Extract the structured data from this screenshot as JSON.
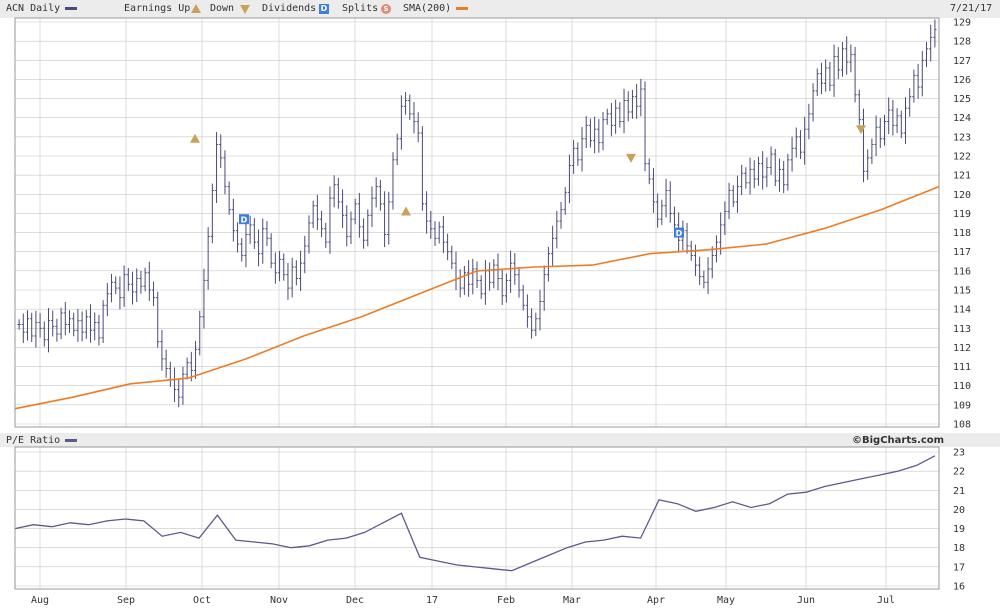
{
  "legend": {
    "symbol_label": "ACN Daily",
    "earnings_label": "Earnings",
    "up_label": "Up",
    "down_label": "Down",
    "dividends_label": "Dividends",
    "splits_label": "Splits",
    "sma_label": "SMA(200)",
    "date_label": "7/21/17",
    "dividend_marker_letter": "D",
    "split_marker_letter": "S"
  },
  "pe_panel": {
    "label": "P/E Ratio",
    "brand": "©BigCharts.com"
  },
  "colors": {
    "price_bars": "#4a4a78",
    "sma_line": "#f07c22",
    "pe_line": "#5a5a90",
    "grid": "#c8c8c8",
    "earnings_marker": "#c9a15a",
    "dividend_marker": "#3d7fd9",
    "split_marker": "#e08a7a",
    "panel_bg": "#ececec"
  },
  "chart_data": [
    {
      "type": "ohlc",
      "ylim": [
        108,
        129
      ],
      "y_ticks": [
        108,
        109,
        110,
        111,
        112,
        113,
        114,
        115,
        116,
        117,
        118,
        119,
        120,
        121,
        122,
        123,
        124,
        125,
        126,
        127,
        128,
        129
      ],
      "x_labels": [
        "Aug",
        "Sep",
        "Oct",
        "Nov",
        "Dec",
        "17",
        "Feb",
        "Mar",
        "Apr",
        "May",
        "Jun",
        "Jul"
      ],
      "series": [
        {
          "name": "ACN Daily",
          "closes": [
            113.2,
            112.8,
            113.5,
            112.6,
            113.3,
            113.0,
            112.4,
            113.4,
            113.1,
            112.7,
            113.8,
            113.2,
            113.5,
            112.9,
            113.4,
            112.8,
            113.6,
            112.9,
            113.3,
            112.5,
            114.2,
            114.8,
            115.4,
            115.1,
            114.6,
            115.8,
            115.3,
            114.9,
            115.6,
            115.2,
            115.9,
            115.0,
            114.6,
            112.3,
            111.4,
            110.9,
            110.3,
            109.8,
            109.4,
            110.6,
            111.2,
            110.8,
            111.9,
            113.6,
            115.5,
            117.8,
            120.2,
            122.6,
            121.9,
            120.4,
            119.2,
            118.1,
            117.4,
            116.8,
            117.9,
            118.4,
            117.5,
            116.9,
            118.2,
            117.7,
            116.4,
            115.9,
            116.6,
            115.8,
            115.1,
            116.2,
            115.6,
            116.4,
            117.3,
            118.5,
            119.4,
            118.7,
            118.2,
            117.5,
            119.8,
            120.5,
            119.6,
            118.9,
            117.8,
            118.7,
            119.5,
            118.3,
            117.6,
            118.9,
            119.8,
            120.4,
            119.5,
            117.9,
            119.6,
            121.8,
            122.9,
            124.6,
            124.9,
            124.2,
            123.8,
            123.2,
            119.5,
            118.6,
            118.2,
            117.7,
            118.3,
            117.5,
            117.0,
            116.4,
            115.6,
            115.1,
            115.9,
            115.3,
            116.1,
            115.5,
            114.8,
            116.0,
            115.4,
            116.3,
            115.6,
            114.7,
            115.5,
            116.4,
            115.8,
            115.0,
            114.2,
            113.6,
            112.9,
            113.5,
            114.4,
            115.8,
            116.9,
            117.7,
            118.6,
            119.2,
            120.1,
            121.5,
            122.4,
            121.8,
            122.9,
            123.6,
            122.8,
            123.4,
            122.7,
            123.9,
            124.2,
            123.6,
            124.5,
            123.8,
            124.9,
            124.3,
            125.1,
            124.6,
            125.5,
            121.6,
            120.8,
            119.6,
            118.7,
            119.4,
            120.2,
            119.0,
            118.4,
            117.6,
            118.1,
            117.3,
            116.8,
            116.3,
            115.7,
            115.4,
            116.1,
            116.8,
            117.5,
            118.4,
            119.1,
            120.2,
            119.6,
            120.4,
            121.1,
            120.6,
            121.3,
            120.8,
            121.6,
            120.9,
            121.4,
            122.1,
            120.7,
            121.3,
            120.5,
            121.8,
            122.4,
            123.0,
            122.2,
            123.4,
            124.2,
            125.4,
            126.3,
            125.8,
            126.6,
            125.7,
            127.2,
            126.5,
            127.6,
            126.9,
            127.3,
            125.2,
            123.9,
            121.2,
            121.9,
            122.6,
            123.5,
            122.9,
            123.8,
            124.4,
            123.6,
            124.1,
            123.2,
            124.5,
            125.1,
            126.2,
            125.6,
            127.0,
            127.6,
            128.2,
            128.6
          ],
          "note": "approximate daily closes"
        },
        {
          "name": "SMA(200)",
          "values": [
            108.8,
            109.4,
            110.1,
            110.4,
            111.4,
            112.6,
            113.6,
            114.8,
            116.0,
            116.2,
            116.3,
            116.9,
            117.1,
            117.4,
            118.2,
            119.2,
            120.4
          ]
        }
      ],
      "earnings": [
        {
          "direction": "up",
          "x": "late Sep",
          "y": 122.9
        },
        {
          "direction": "up",
          "x": "mid Dec",
          "y": 119.1
        },
        {
          "direction": "down",
          "x": "late Mar",
          "y": 121.9
        },
        {
          "direction": "down",
          "x": "late Jun",
          "y": 123.4
        }
      ],
      "dividends": [
        {
          "x": "early Oct",
          "y": 118.7
        },
        {
          "x": "mid Apr",
          "y": 118.0
        }
      ]
    },
    {
      "type": "line",
      "ylim": [
        16,
        23
      ],
      "y_ticks": [
        16,
        17,
        18,
        19,
        20,
        21,
        22,
        23
      ],
      "x_labels": [
        "Aug",
        "Sep",
        "Oct",
        "Nov",
        "Dec",
        "17",
        "Feb",
        "Mar",
        "Apr",
        "May",
        "Jun",
        "Jul"
      ],
      "series": [
        {
          "name": "P/E Ratio",
          "values": [
            19.0,
            19.2,
            19.1,
            19.3,
            19.2,
            19.4,
            19.5,
            19.4,
            18.6,
            18.8,
            18.5,
            19.7,
            18.4,
            18.3,
            18.2,
            18.0,
            18.1,
            18.4,
            18.5,
            18.8,
            19.3,
            19.8,
            17.5,
            17.3,
            17.1,
            17.0,
            16.9,
            16.8,
            17.2,
            17.6,
            18.0,
            18.3,
            18.4,
            18.6,
            18.5,
            20.5,
            20.3,
            19.9,
            20.1,
            20.4,
            20.1,
            20.3,
            20.8,
            20.9,
            21.2,
            21.4,
            21.6,
            21.8,
            22.0,
            22.3,
            22.8
          ]
        }
      ]
    }
  ]
}
